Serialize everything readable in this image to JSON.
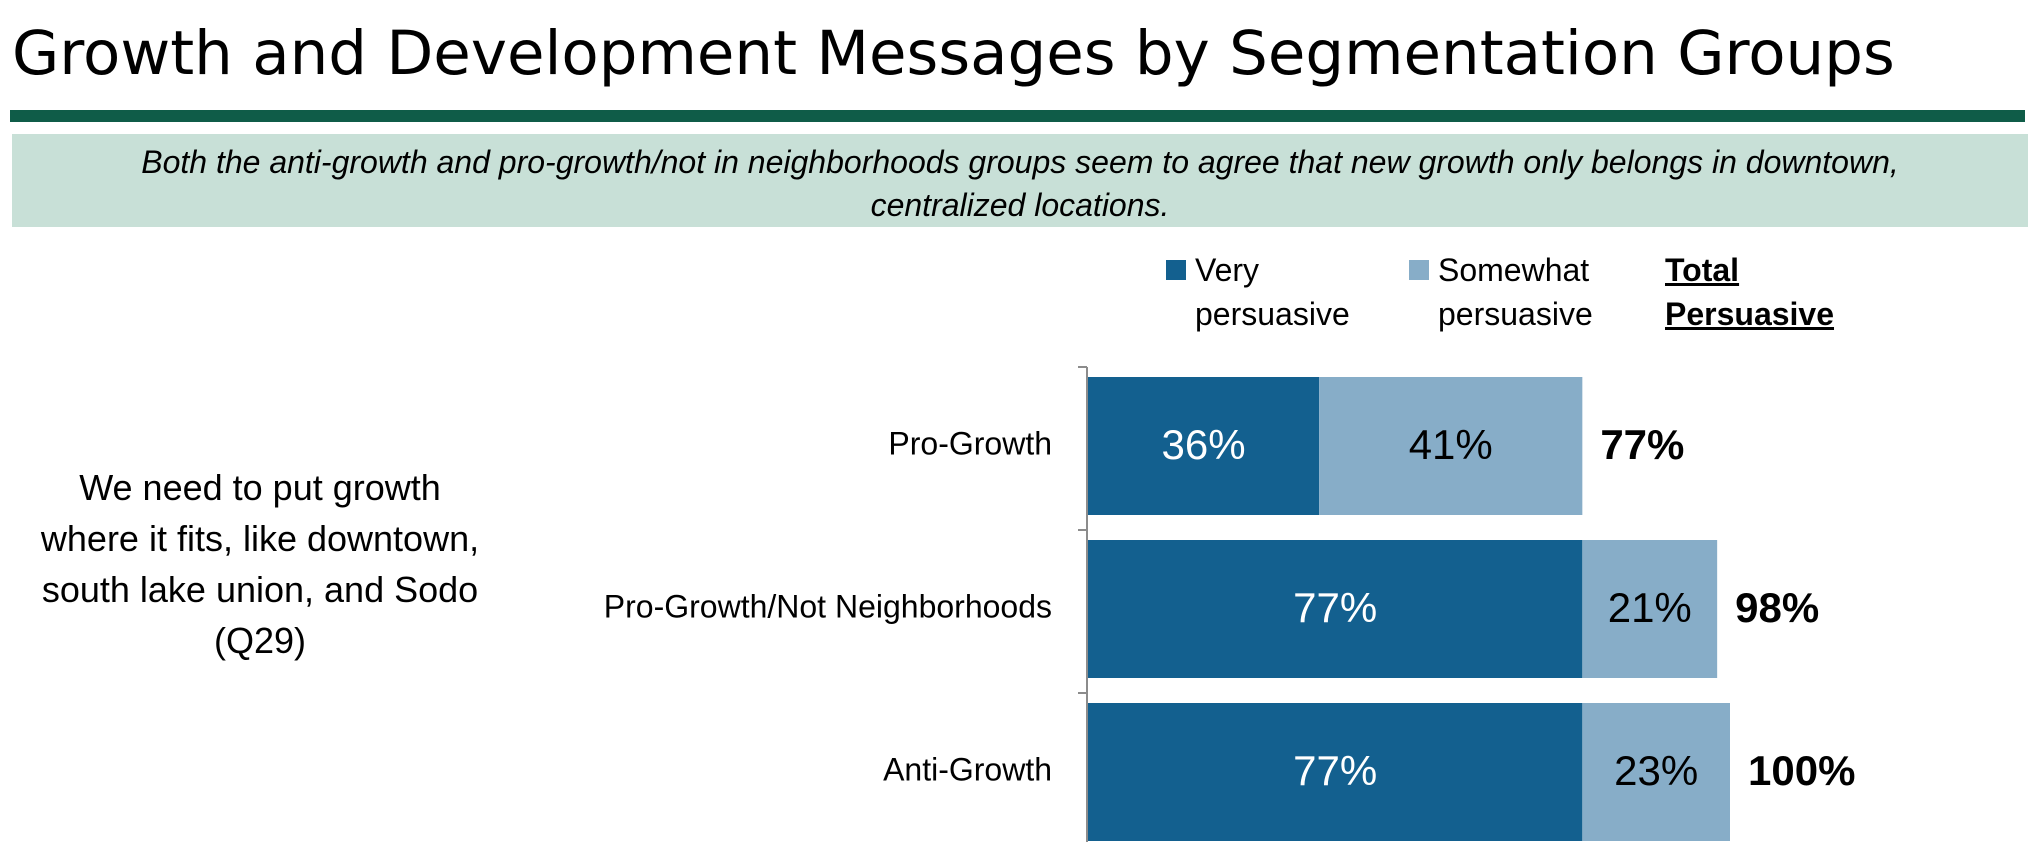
{
  "title": "Growth and Development Messages by Segmentation Groups",
  "subtitle": "Both the anti-growth and pro-growth/not in neighborhoods groups seem to agree that new growth only belongs in downtown, centralized locations.",
  "message": "We need to put growth where it fits, like downtown, south lake union, and Sodo (Q29)",
  "legend": {
    "very_line1": "Very",
    "very_line2": "persuasive",
    "somewhat_line1": "Somewhat",
    "somewhat_line2": "persuasive",
    "total_line1": "Total",
    "total_line2": "Persuasive"
  },
  "colors": {
    "very": "#13608f",
    "somewhat": "#87adc8",
    "title_rule": "#0f5c48",
    "subtitle_bg": "#c8e0d7"
  },
  "chart_data": {
    "type": "bar",
    "orientation": "horizontal",
    "stacked": true,
    "categories": [
      "Pro-Growth",
      "Pro-Growth/Not Neighborhoods",
      "Anti-Growth"
    ],
    "series": [
      {
        "name": "Very persuasive",
        "values": [
          36,
          77,
          77
        ]
      },
      {
        "name": "Somewhat persuasive",
        "values": [
          41,
          21,
          23
        ]
      }
    ],
    "totals": [
      77,
      98,
      100
    ],
    "total_labels": [
      "77%",
      "98%",
      "100%"
    ],
    "segment_labels": [
      [
        "36%",
        "77%",
        "77%"
      ],
      [
        "41%",
        "21%",
        "23%"
      ]
    ],
    "xlim": [
      0,
      100
    ],
    "legend_position": "top"
  }
}
